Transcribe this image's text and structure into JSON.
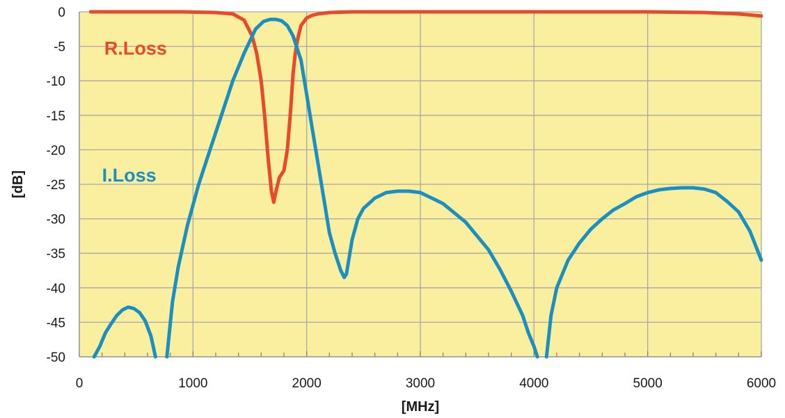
{
  "chart_data": {
    "type": "line",
    "xlabel": "[MHz]",
    "ylabel": "[dB]",
    "xlim": [
      0,
      6000
    ],
    "ylim": [
      -50,
      0
    ],
    "x_ticks": [
      "0",
      "1000",
      "2000",
      "3000",
      "4000",
      "5000",
      "6000"
    ],
    "y_ticks": [
      "0",
      "-5",
      "-10",
      "-15",
      "-20",
      "-25",
      "-30",
      "-35",
      "-40",
      "-45",
      "-50"
    ],
    "grid": true,
    "minor_x_ticks_per_major": 5,
    "plot_background": "#faee9f",
    "grid_color": "#a8a8a8",
    "series": [
      {
        "name": "R.Loss",
        "color": "#e8492b",
        "x": [
          100,
          500,
          900,
          1200,
          1350,
          1450,
          1520,
          1560,
          1600,
          1630,
          1660,
          1690,
          1710,
          1730,
          1760,
          1800,
          1830,
          1860,
          1880,
          1900,
          1920,
          1950,
          2000,
          2050,
          2100,
          2200,
          2400,
          3000,
          4000,
          5000,
          5500,
          5800,
          6000
        ],
        "y": [
          0,
          0,
          0,
          -0.1,
          -0.3,
          -1.2,
          -3.5,
          -6,
          -10,
          -15,
          -21,
          -26,
          -27.6,
          -26,
          -24,
          -23,
          -20,
          -14,
          -9,
          -6,
          -4,
          -2,
          -0.9,
          -0.5,
          -0.3,
          -0.1,
          0,
          0,
          0,
          0,
          -0.1,
          -0.3,
          -0.6
        ]
      },
      {
        "name": "I.Loss",
        "color": "#1c8fc2",
        "segments": [
          {
            "x": [
              130,
              180,
              230,
              280,
              330,
              380,
              430,
              480,
              530,
              580,
              630,
              670
            ],
            "y": [
              -50,
              -48.5,
              -46.5,
              -45.2,
              -44,
              -43.2,
              -42.8,
              -43,
              -43.6,
              -44.8,
              -47,
              -50
            ]
          },
          {
            "x": [
              770,
              820,
              870,
              950,
              1050,
              1150,
              1250,
              1350,
              1450,
              1550,
              1620,
              1680,
              1730,
              1780,
              1830,
              1880,
              1950,
              2000,
              2050,
              2100,
              2150,
              2200,
              2250,
              2300,
              2330,
              2350,
              2370,
              2400,
              2450,
              2500,
              2600,
              2700,
              2800,
              2900,
              3000,
              3200,
              3400,
              3600,
              3700,
              3800,
              3900,
              3950,
              4000,
              4030
            ],
            "y": [
              -50,
              -42,
              -37,
              -31,
              -25,
              -20,
              -15,
              -10,
              -6,
              -2.5,
              -1.4,
              -1.1,
              -1.1,
              -1.3,
              -2,
              -3.5,
              -7,
              -12,
              -17,
              -22,
              -27,
              -32,
              -35,
              -37.5,
              -38.5,
              -38,
              -36,
              -33,
              -30,
              -28.5,
              -27,
              -26.2,
              -26,
              -26,
              -26.2,
              -27.8,
              -30.5,
              -34.5,
              -37.3,
              -40.5,
              -44,
              -46.5,
              -48.5,
              -50
            ]
          },
          {
            "x": [
              4110,
              4150,
              4200,
              4300,
              4400,
              4500,
              4600,
              4700,
              4800,
              4900,
              5000,
              5100,
              5200,
              5300,
              5400,
              5500,
              5600,
              5700,
              5800,
              5900,
              6000
            ],
            "y": [
              -50,
              -44,
              -40,
              -36,
              -33.5,
              -31.5,
              -30,
              -28.7,
              -27.8,
              -26.8,
              -26.2,
              -25.8,
              -25.6,
              -25.5,
              -25.5,
              -25.7,
              -26.2,
              -27.5,
              -29,
              -31.8,
              -36
            ]
          }
        ]
      }
    ],
    "annotations": [
      {
        "text": "R.Loss",
        "series": "R.Loss",
        "x": 220,
        "y": -6.2
      },
      {
        "text": "I.Loss",
        "series": "I.Loss",
        "x": 200,
        "y": -24.6
      }
    ]
  }
}
